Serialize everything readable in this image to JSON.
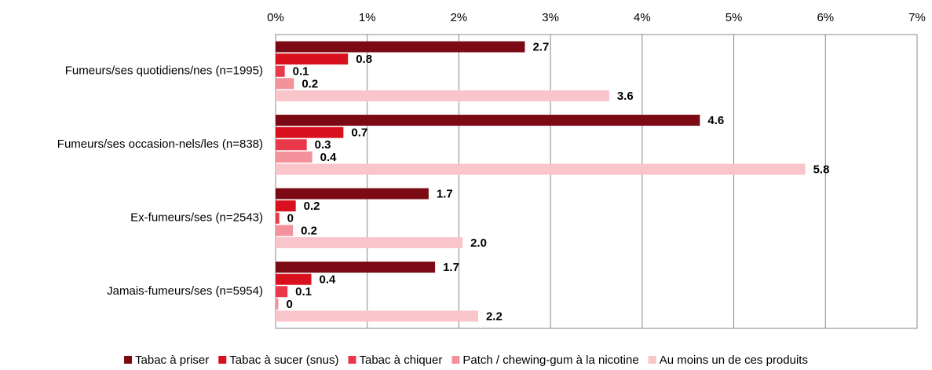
{
  "chart_data": {
    "type": "bar",
    "orientation": "horizontal",
    "categories": [
      "Fumeurs/ses quotidiens/nes (n=1995)",
      "Fumeurs/ses occasion-nels/les (n=838)",
      "Ex-fumeurs/ses (n=2543)",
      "Jamais-fumeurs/ses (n=5954)"
    ],
    "series": [
      {
        "name": "Tabac à priser",
        "color": "#7b0a14",
        "values": [
          2.72,
          4.63,
          1.67,
          1.74
        ],
        "value_labels": [
          "2.7",
          "4.6",
          "1.7",
          "1.7"
        ]
      },
      {
        "name": "Tabac à sucer (snus)",
        "color": "#d9111e",
        "values": [
          0.79,
          0.74,
          0.22,
          0.39
        ],
        "value_labels": [
          "0.8",
          "0.7",
          "0.2",
          "0.4"
        ]
      },
      {
        "name": "Tabac à chiquer",
        "color": "#e8384a",
        "values": [
          0.1,
          0.34,
          0.04,
          0.13
        ],
        "value_labels": [
          "0.1",
          "0.3",
          "0",
          "0.1"
        ]
      },
      {
        "name": "Patch / chewing-gum à la nicotine",
        "color": "#f4929c",
        "values": [
          0.2,
          0.4,
          0.19,
          0.03
        ],
        "value_labels": [
          "0.2",
          "0.4",
          "0.2",
          "0"
        ]
      },
      {
        "name": "Au moins un de ces produits",
        "color": "#f9c4ca",
        "values": [
          3.64,
          5.78,
          2.04,
          2.21
        ],
        "value_labels": [
          "3.6",
          "5.8",
          "2.0",
          "2.2"
        ]
      }
    ],
    "xlim": [
      0,
      7
    ],
    "xticks": [
      {
        "value": 0,
        "label": "0%"
      },
      {
        "value": 1,
        "label": "1%"
      },
      {
        "value": 2,
        "label": "2%"
      },
      {
        "value": 3,
        "label": "3%"
      },
      {
        "value": 4,
        "label": "4%"
      },
      {
        "value": 5,
        "label": "5%"
      },
      {
        "value": 6,
        "label": "6%"
      },
      {
        "value": 7,
        "label": "7%"
      }
    ],
    "grid": true,
    "legend": "bottom"
  }
}
